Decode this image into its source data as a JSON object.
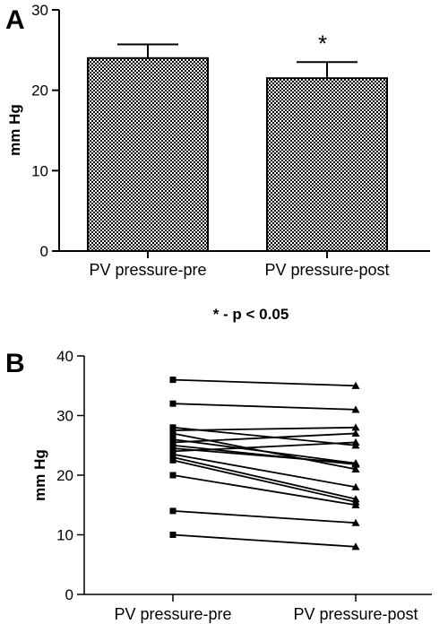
{
  "chart_data": [
    {
      "panel": "A",
      "type": "bar",
      "title": "",
      "xlabel": "",
      "ylabel": "mm Hg",
      "ylim": [
        0,
        30
      ],
      "yticks": [
        0,
        10,
        20,
        30
      ],
      "categories": [
        "PV pressure-pre",
        "PV pressure-post"
      ],
      "values": [
        24.0,
        21.5
      ],
      "errors": [
        1.7,
        2.0
      ],
      "annotations": [
        {
          "category": "PV pressure-post",
          "text": "*"
        }
      ],
      "fill_pattern": "checkered",
      "note": "* - p < 0.05"
    },
    {
      "panel": "B",
      "type": "line",
      "title": "",
      "xlabel": "",
      "ylabel": "mm Hg",
      "ylim": [
        0,
        40
      ],
      "yticks": [
        0,
        10,
        20,
        30,
        40
      ],
      "categories": [
        "PV pressure-pre",
        "PV pressure-post"
      ],
      "pairs": [
        [
          36,
          35
        ],
        [
          32,
          31
        ],
        [
          28,
          25
        ],
        [
          27.5,
          28
        ],
        [
          27,
          21
        ],
        [
          26,
          22
        ],
        [
          25.5,
          27
        ],
        [
          25,
          21.8
        ],
        [
          24.5,
          22
        ],
        [
          24,
          25.5
        ],
        [
          23.5,
          18
        ],
        [
          23,
          16
        ],
        [
          22.5,
          15.5
        ],
        [
          20,
          15
        ],
        [
          14,
          12
        ],
        [
          10,
          8
        ]
      ],
      "markers": {
        "pre": "square",
        "post": "triangle"
      }
    }
  ]
}
